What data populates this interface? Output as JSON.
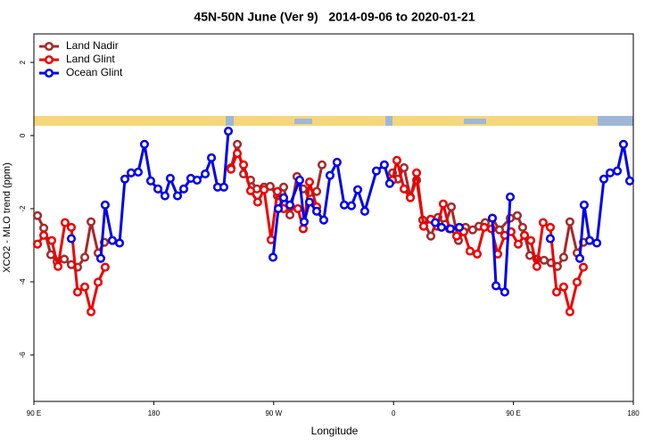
{
  "chart_data": {
    "type": "line",
    "title": "45N-50N June (Ver 9)   2014-09-06 to 2020-01-21",
    "x_label": "Longitude",
    "y_label": "XCO2 - MLO trend (ppm)",
    "xlim": [
      -270,
      180
    ],
    "ylim": [
      -7.27,
      2.78
    ],
    "xticks": [
      {
        "value": -270,
        "label": "90 E"
      },
      {
        "value": -180,
        "label": "180"
      },
      {
        "value": -90,
        "label": "90 W"
      },
      0,
      {
        "value": 90,
        "label": "90 E"
      },
      180
    ],
    "yticks": [
      2,
      0,
      -2,
      -4,
      -6
    ],
    "legend": "top-left",
    "series": [
      {
        "name": "Land Nadir",
        "color": "#a52a2a",
        "x": [
          -267.3,
          -262.6,
          -257.3,
          -252.6,
          -247.2,
          -241.9,
          -237.2,
          -231.8,
          -227.1,
          -221.8,
          -217.1,
          null,
          -122.0,
          -117.3,
          -112.6,
          -107.3,
          -102.6,
          -97.2,
          -92.6,
          -87.2,
          -82.5,
          -77.8,
          -72.5,
          -67.8,
          -63.1,
          -57.7,
          -53.7,
          null,
          -0.8,
          3.2,
          7.9,
          12.6,
          17.3,
          21.9,
          28.0,
          33.3,
          38.7,
          43.4,
          48.7,
          54.1,
          59.4,
          64.1,
          68.8,
          74.2,
          79.5,
          87.6,
          92.9,
          96.9,
          102.3,
          107.6,
          113.0,
          118.3,
          123.0,
          127.7,
          132.4,
          137.8,
          142.5
        ],
        "values": [
          -2.19,
          -2.53,
          -3.26,
          -3.45,
          -3.38,
          -3.53,
          -3.6,
          -3.33,
          -2.36,
          -3.21,
          -2.92,
          null,
          -0.88,
          -0.24,
          -1.05,
          -1.22,
          -1.46,
          -1.41,
          -1.39,
          -1.65,
          -1.41,
          -2.17,
          -1.12,
          -1.46,
          -1.56,
          -1.53,
          -0.8,
          null,
          -1.02,
          -1.19,
          -0.88,
          -1.68,
          -1.22,
          -2.31,
          -2.75,
          -2.24,
          -2.43,
          -1.95,
          -2.87,
          -2.51,
          -2.58,
          -2.48,
          -2.38,
          -2.26,
          -2.58,
          -2.26,
          -2.19,
          -2.51,
          -3.28,
          -3.38,
          -3.41,
          -3.48,
          -3.58,
          -3.33,
          -2.36,
          -3.21,
          -2.92
        ]
      },
      {
        "name": "Land Glint",
        "color": "#ee0000",
        "x": [
          -267.3,
          -262.6,
          -256.6,
          -251.9,
          -246.6,
          -241.9,
          -237.2,
          -231.8,
          -227.1,
          -221.8,
          -216.5,
          null,
          -122.0,
          -117.3,
          -112.6,
          -107.3,
          -102.0,
          -97.2,
          -91.9,
          -87.2,
          -82.5,
          -77.2,
          -71.8,
          -67.8,
          -63.1,
          -57.7,
          null,
          -0.8,
          2.5,
          7.9,
          12.6,
          17.3,
          22.6,
          27.9,
          32.7,
          37.3,
          42.0,
          47.4,
          52.7,
          57.4,
          62.8,
          68.1,
          73.5,
          78.2,
          83.5,
          88.2,
          93.6,
          98.3,
          103.0,
          107.6,
          112.3,
          117.7,
          122.4,
          127.7,
          132.4,
          137.8,
          142.5
        ],
        "values": [
          -2.97,
          -2.73,
          -2.87,
          -3.58,
          -2.38,
          -2.51,
          -4.28,
          -4.14,
          -4.82,
          -4.01,
          -3.6,
          null,
          -0.92,
          -0.49,
          -0.8,
          -1.51,
          -1.82,
          -1.48,
          -2.85,
          -1.53,
          -2.0,
          -1.95,
          -2.0,
          -2.55,
          -1.27,
          -1.95,
          null,
          -1.22,
          -0.68,
          -1.46,
          -1.7,
          -1.02,
          -2.48,
          -2.29,
          -2.48,
          -1.87,
          -2.55,
          -2.75,
          -2.63,
          -3.16,
          -3.24,
          -2.51,
          -2.55,
          -3.24,
          -2.73,
          -2.63,
          -2.97,
          -2.73,
          -2.87,
          -3.58,
          -2.38,
          -2.51,
          -4.28,
          -4.14,
          -4.82,
          -4.01,
          -3.6
        ]
      },
      {
        "name": "Ocean Glint",
        "color": "#0000ee",
        "x": [
          -241.9,
          null,
          -219.8,
          -216.5,
          -211.1,
          -205.7,
          -201.7,
          -197.0,
          -191.7,
          -187.0,
          -182.3,
          -176.9,
          -171.6,
          -167.6,
          -162.2,
          -157.5,
          -152.2,
          -147.5,
          -141.4,
          -136.7,
          -132.1,
          -127.4,
          -124.0,
          null,
          -90.5,
          -86.5,
          -82.5,
          -77.8,
          -70.5,
          -67.1,
          -63.1,
          -57.7,
          -52.4,
          -47.7,
          -42.4,
          -37.0,
          -31.6,
          -26.9,
          -21.6,
          -12.9,
          -6.9,
          -2.9,
          null,
          31.3,
          36.0,
          42.7,
          49.4,
          null,
          74.2,
          76.9,
          83.5,
          87.6,
          null,
          117.7,
          null,
          139.8,
          143.1,
          147.2,
          152.6,
          157.9,
          162.6,
          168.0,
          172.6,
          177.3
        ],
        "values": [
          -2.82,
          null,
          -3.36,
          -1.9,
          -2.87,
          -2.94,
          -1.19,
          -1.02,
          -1.0,
          -0.24,
          -1.24,
          -1.46,
          -1.65,
          -1.17,
          -1.65,
          -1.46,
          -1.17,
          -1.22,
          -1.05,
          -0.61,
          -1.41,
          -1.41,
          0.12,
          null,
          -3.33,
          -2.0,
          -1.7,
          -1.9,
          -1.22,
          -2.36,
          -1.82,
          -2.07,
          -2.31,
          -1.09,
          -0.73,
          -1.9,
          -1.92,
          -1.48,
          -2.07,
          -0.97,
          -0.8,
          -1.31,
          null,
          -2.38,
          -2.51,
          -2.55,
          -2.51,
          null,
          -2.26,
          -4.11,
          -4.28,
          -1.68,
          null,
          -2.82,
          null,
          -3.36,
          -1.9,
          -2.87,
          -2.94,
          -1.19,
          -1.02,
          -0.97,
          -0.24,
          -1.24
        ]
      }
    ]
  }
}
